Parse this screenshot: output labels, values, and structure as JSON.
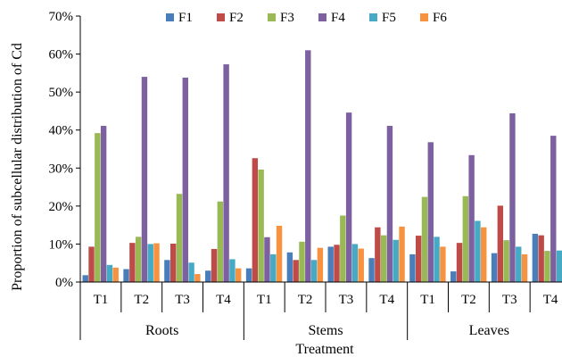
{
  "chart_data": {
    "type": "bar",
    "title": "",
    "ylabel": "Proportion of subcellular distribution of Cd",
    "xlabel": "Treatment",
    "ylim": [
      0,
      70
    ],
    "y_ticks": [
      "0%",
      "10%",
      "20%",
      "30%",
      "40%",
      "50%",
      "60%",
      "70%"
    ],
    "grid": false,
    "legend_position": "top",
    "groups": [
      "Roots",
      "Stems",
      "Leaves"
    ],
    "treatments": [
      "T1",
      "T2",
      "T3",
      "T4"
    ],
    "categories": [
      "T1",
      "T2",
      "T3",
      "T4",
      "T1",
      "T2",
      "T3",
      "T4",
      "T1",
      "T2",
      "T3",
      "T4"
    ],
    "series": [
      {
        "name": "F1",
        "color": "#4a7ebb",
        "values": [
          1.8,
          3.4,
          5.8,
          3.0,
          3.6,
          7.8,
          9.3,
          6.3,
          7.3,
          2.8,
          7.6,
          12.7
        ]
      },
      {
        "name": "F2",
        "color": "#be4b48",
        "values": [
          9.3,
          10.3,
          10.1,
          8.7,
          32.6,
          5.8,
          9.8,
          14.4,
          12.2,
          10.3,
          20.1,
          12.3
        ]
      },
      {
        "name": "F3",
        "color": "#98b954",
        "values": [
          39.2,
          11.9,
          23.2,
          21.2,
          29.6,
          10.6,
          17.5,
          12.3,
          22.4,
          22.6,
          11.0,
          8.2
        ]
      },
      {
        "name": "F4",
        "color": "#7d60a0",
        "values": [
          41.1,
          54.0,
          53.8,
          57.3,
          11.8,
          61.0,
          44.6,
          41.1,
          36.8,
          33.4,
          44.4,
          38.5
        ]
      },
      {
        "name": "F5",
        "color": "#46aac5",
        "values": [
          4.5,
          10.0,
          5.1,
          6.0,
          7.3,
          5.8,
          10.0,
          11.1,
          11.9,
          16.1,
          9.3,
          8.3
        ]
      },
      {
        "name": "F6",
        "color": "#f69240",
        "values": [
          3.8,
          10.2,
          2.1,
          3.6,
          14.8,
          9.0,
          8.8,
          14.6,
          9.3,
          14.4,
          7.3,
          0.0
        ]
      }
    ]
  }
}
